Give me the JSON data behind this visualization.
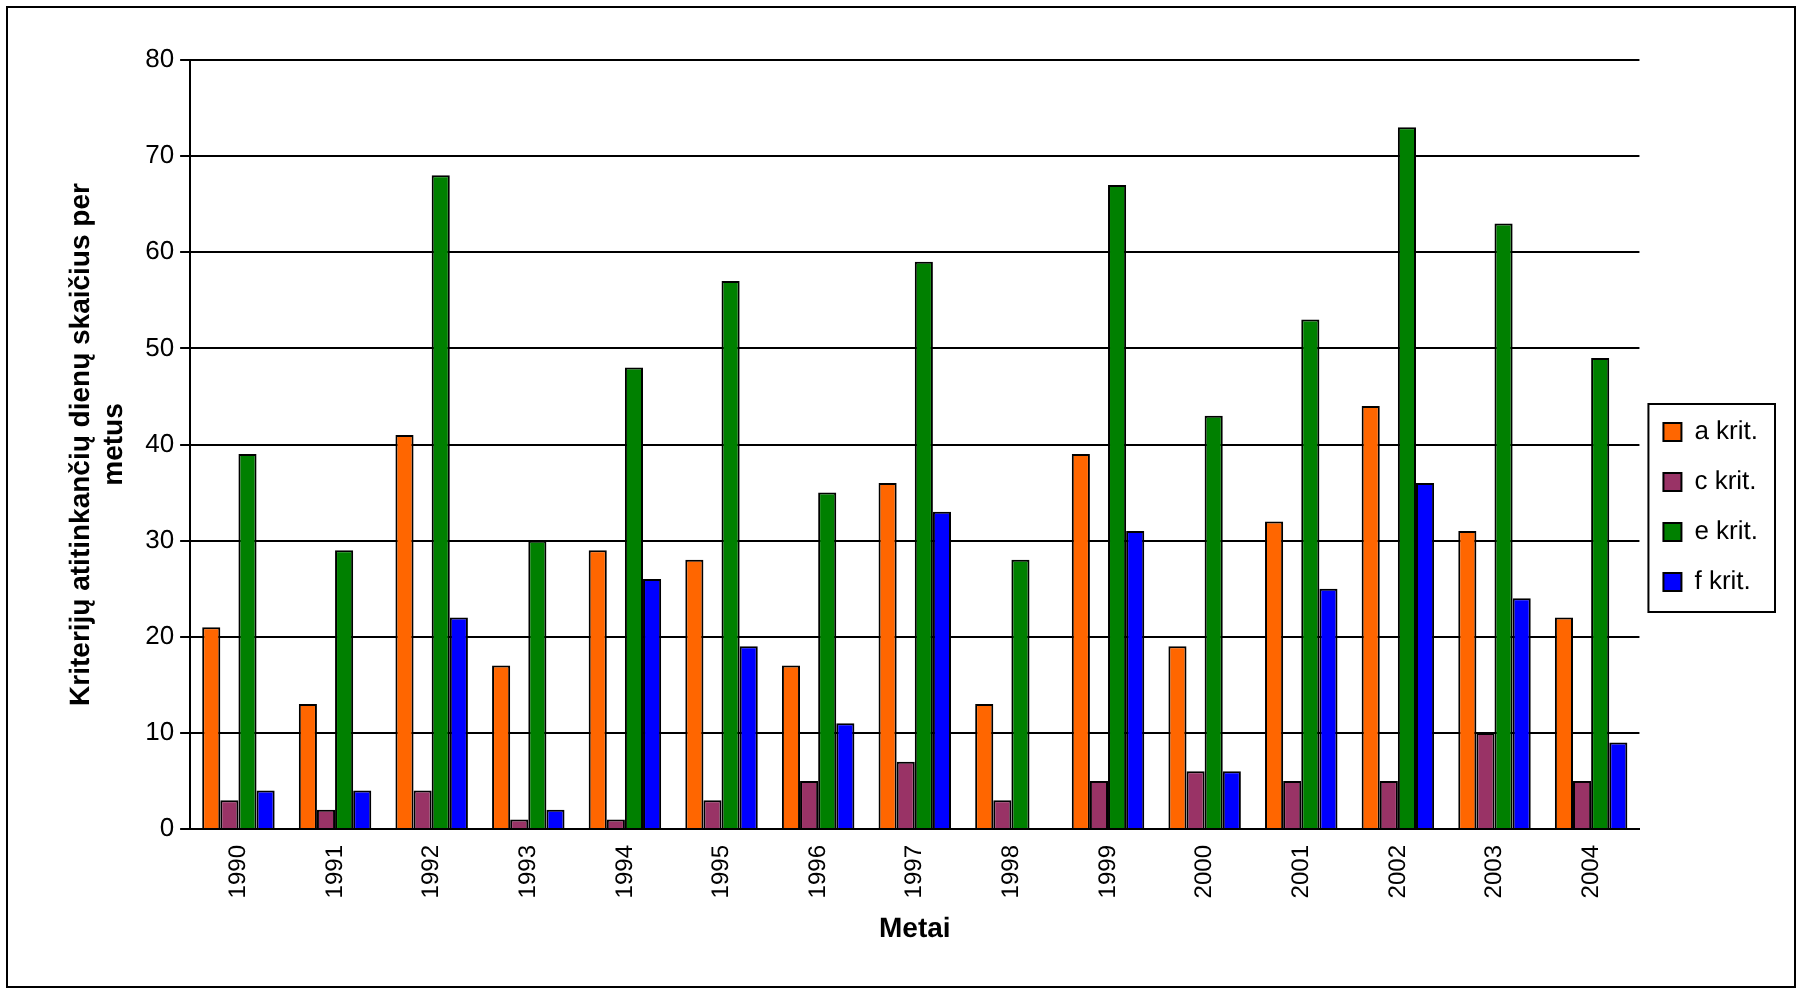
{
  "chart_data": {
    "type": "bar",
    "xlabel": "Metai",
    "ylabel": "Kriterijų atitinkančių dienų skaičius per metus",
    "categories": [
      "1990",
      "1991",
      "1992",
      "1993",
      "1994",
      "1995",
      "1996",
      "1997",
      "1998",
      "1999",
      "2000",
      "2001",
      "2002",
      "2003",
      "2004"
    ],
    "series": [
      {
        "name": "a krit.",
        "color": "#ff6600",
        "values": [
          21,
          13,
          41,
          17,
          29,
          28,
          17,
          36,
          13,
          39,
          19,
          32,
          44,
          31,
          22
        ]
      },
      {
        "name": "c krit.",
        "color": "#993366",
        "values": [
          3,
          2,
          4,
          1,
          1,
          3,
          5,
          7,
          3,
          5,
          6,
          5,
          5,
          10,
          5
        ]
      },
      {
        "name": "e krit.",
        "color": "#008000",
        "values": [
          39,
          29,
          68,
          30,
          48,
          57,
          35,
          59,
          28,
          67,
          43,
          53,
          73,
          63,
          49
        ]
      },
      {
        "name": "f krit.",
        "color": "#0000ff",
        "values": [
          4,
          4,
          22,
          2,
          26,
          19,
          11,
          33,
          0,
          31,
          6,
          25,
          36,
          24,
          9
        ]
      }
    ],
    "ylim": [
      0,
      80
    ],
    "yticks": [
      0,
      10,
      20,
      30,
      40,
      50,
      60,
      70,
      80
    ],
    "grid": "y",
    "legend": "right"
  }
}
